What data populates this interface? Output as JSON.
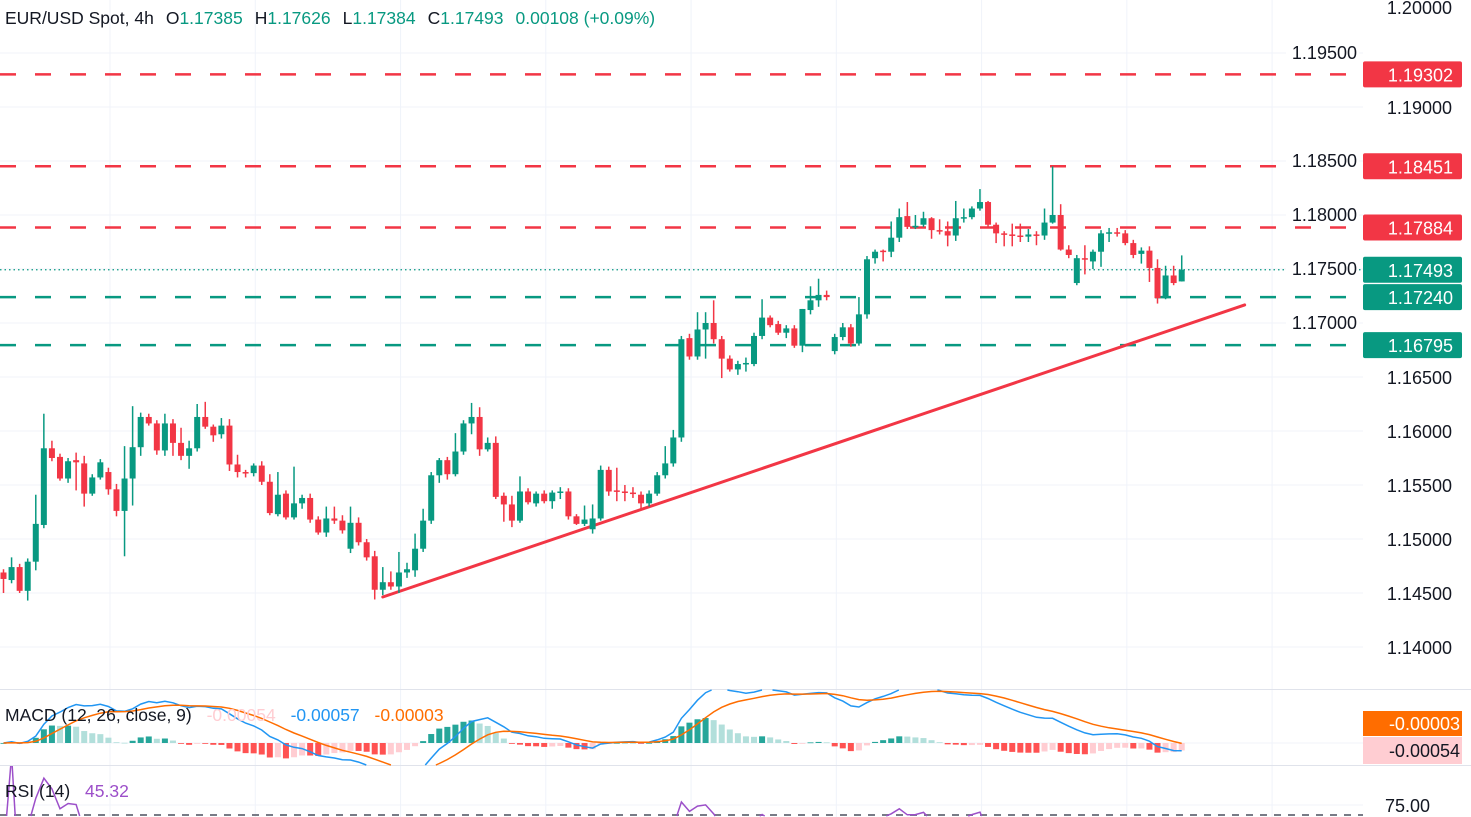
{
  "header": {
    "symbol": "EUR/USD Spot, 4h",
    "o_label": "O",
    "o": "1.17385",
    "h_label": "H",
    "h": "1.17626",
    "l_label": "L",
    "l": "1.17384",
    "c_label": "C",
    "c": "1.17493",
    "change": "0.00108 (+0.09%)"
  },
  "macd": {
    "title": "MACD (12, 26, close, 9)",
    "histogram": "-0.00054",
    "macd": "-0.00057",
    "signal": "-0.00003"
  },
  "rsi": {
    "title": "RSI (14)",
    "value": "45.32",
    "axis_label": "75.00"
  },
  "colors": {
    "up": "#089981",
    "down": "#f23645",
    "macd": "#2196f3",
    "signal": "#ff6d00",
    "rsi": "#9c4fc9",
    "grid": "#f0f3fa"
  },
  "chart_data": {
    "type": "candlestick",
    "title": "EUR/USD Spot, 4h",
    "ylim": [
      1.1362,
      1.2001
    ],
    "y_ticks": [
      "1.14000",
      "1.14500",
      "1.15000",
      "1.15500",
      "1.16000",
      "1.16500",
      "1.17000",
      "1.17500",
      "1.18000",
      "1.18500",
      "1.19000",
      "1.19500",
      "1.20000"
    ],
    "ohlc_fields": [
      "open",
      "high",
      "low",
      "close"
    ],
    "candles": [
      [
        1.1469,
        1.1472,
        1.145,
        1.1463
      ],
      [
        1.1462,
        1.1483,
        1.1459,
        1.1474
      ],
      [
        1.1474,
        1.1477,
        1.145,
        1.1452
      ],
      [
        1.1452,
        1.1482,
        1.1443,
        1.1479
      ],
      [
        1.1479,
        1.1541,
        1.1471,
        1.1514
      ],
      [
        1.1513,
        1.1616,
        1.151,
        1.1584
      ],
      [
        1.1584,
        1.1591,
        1.1572,
        1.1575
      ],
      [
        1.1576,
        1.1579,
        1.1554,
        1.1556
      ],
      [
        1.1556,
        1.1575,
        1.1552,
        1.1572
      ],
      [
        1.1573,
        1.158,
        1.1545,
        1.1571
      ],
      [
        1.157,
        1.1577,
        1.153,
        1.1542
      ],
      [
        1.1542,
        1.156,
        1.154,
        1.1557
      ],
      [
        1.1557,
        1.1574,
        1.1555,
        1.1571
      ],
      [
        1.1562,
        1.1566,
        1.1541,
        1.1546
      ],
      [
        1.1546,
        1.1551,
        1.1521,
        1.1526
      ],
      [
        1.1526,
        1.1586,
        1.1484,
        1.1556
      ],
      [
        1.1556,
        1.1623,
        1.1531,
        1.1585
      ],
      [
        1.1585,
        1.1617,
        1.1577,
        1.1613
      ],
      [
        1.1613,
        1.1616,
        1.1605,
        1.1607
      ],
      [
        1.1607,
        1.161,
        1.1578,
        1.1582
      ],
      [
        1.1582,
        1.1616,
        1.1577,
        1.1607
      ],
      [
        1.1607,
        1.1611,
        1.1577,
        1.1589
      ],
      [
        1.1589,
        1.1603,
        1.1573,
        1.1577
      ],
      [
        1.1577,
        1.1591,
        1.1565,
        1.1584
      ],
      [
        1.1584,
        1.1625,
        1.1581,
        1.1613
      ],
      [
        1.1613,
        1.1627,
        1.1602,
        1.1604
      ],
      [
        1.1604,
        1.1606,
        1.159,
        1.1596
      ],
      [
        1.1597,
        1.1612,
        1.1593,
        1.1605
      ],
      [
        1.1605,
        1.1611,
        1.1563,
        1.1569
      ],
      [
        1.1569,
        1.1578,
        1.1557,
        1.1562
      ],
      [
        1.1562,
        1.1564,
        1.1557,
        1.1561
      ],
      [
        1.1561,
        1.157,
        1.1558,
        1.1568
      ],
      [
        1.1568,
        1.1572,
        1.155,
        1.1553
      ],
      [
        1.1553,
        1.156,
        1.1522,
        1.1524
      ],
      [
        1.1523,
        1.1562,
        1.1521,
        1.1541
      ],
      [
        1.1542,
        1.1545,
        1.1518,
        1.152
      ],
      [
        1.152,
        1.1567,
        1.1518,
        1.1533
      ],
      [
        1.1533,
        1.1541,
        1.1528,
        1.1538
      ],
      [
        1.1538,
        1.1542,
        1.1515,
        1.1518
      ],
      [
        1.1518,
        1.1521,
        1.1504,
        1.1506
      ],
      [
        1.1506,
        1.153,
        1.1502,
        1.1519
      ],
      [
        1.1519,
        1.153,
        1.1514,
        1.1517
      ],
      [
        1.1517,
        1.1522,
        1.1505,
        1.1508
      ],
      [
        1.1491,
        1.153,
        1.1487,
        1.1515
      ],
      [
        1.1515,
        1.152,
        1.1494,
        1.1497
      ],
      [
        1.1497,
        1.15,
        1.148,
        1.1483
      ],
      [
        1.1484,
        1.1489,
        1.1444,
        1.1453
      ],
      [
        1.1453,
        1.1474,
        1.1448,
        1.146
      ],
      [
        1.146,
        1.147,
        1.1453,
        1.1456
      ],
      [
        1.1456,
        1.1488,
        1.145,
        1.1469
      ],
      [
        1.1469,
        1.1478,
        1.1464,
        1.1472
      ],
      [
        1.1471,
        1.1505,
        1.1465,
        1.1491
      ],
      [
        1.1491,
        1.1528,
        1.1488,
        1.1517
      ],
      [
        1.1517,
        1.1562,
        1.1514,
        1.1559
      ],
      [
        1.1559,
        1.1575,
        1.1552,
        1.1573
      ],
      [
        1.1573,
        1.1576,
        1.1555,
        1.156
      ],
      [
        1.156,
        1.1598,
        1.1558,
        1.1581
      ],
      [
        1.1581,
        1.161,
        1.1578,
        1.1607
      ],
      [
        1.1607,
        1.1626,
        1.1597,
        1.1613
      ],
      [
        1.1613,
        1.1622,
        1.1577,
        1.1583
      ],
      [
        1.1583,
        1.1594,
        1.1581,
        1.1589
      ],
      [
        1.1589,
        1.1595,
        1.1537,
        1.1539
      ],
      [
        1.154,
        1.1543,
        1.1516,
        1.1532
      ],
      [
        1.1532,
        1.154,
        1.1511,
        1.1517
      ],
      [
        1.1517,
        1.1558,
        1.1515,
        1.1544
      ],
      [
        1.1544,
        1.1547,
        1.1532,
        1.1534
      ],
      [
        1.1533,
        1.1544,
        1.153,
        1.1542
      ],
      [
        1.1542,
        1.1545,
        1.1533,
        1.1535
      ],
      [
        1.1535,
        1.1545,
        1.1528,
        1.1543
      ],
      [
        1.1543,
        1.1548,
        1.1537,
        1.1544
      ],
      [
        1.1544,
        1.1547,
        1.1518,
        1.1521
      ],
      [
        1.1521,
        1.1523,
        1.1513,
        1.1514
      ],
      [
        1.1514,
        1.1531,
        1.1512,
        1.1518
      ],
      [
        1.1509,
        1.1532,
        1.1505,
        1.1519
      ],
      [
        1.1519,
        1.1568,
        1.1517,
        1.1564
      ],
      [
        1.1564,
        1.1567,
        1.154,
        1.1544
      ],
      [
        1.1545,
        1.1566,
        1.1535,
        1.1544
      ],
      [
        1.1544,
        1.155,
        1.1535,
        1.1543
      ],
      [
        1.1543,
        1.1548,
        1.1538,
        1.1542
      ],
      [
        1.1541,
        1.1544,
        1.1527,
        1.1533
      ],
      [
        1.1533,
        1.1545,
        1.153,
        1.1542
      ],
      [
        1.1542,
        1.1562,
        1.154,
        1.1559
      ],
      [
        1.1559,
        1.1586,
        1.1556,
        1.157
      ],
      [
        1.157,
        1.1601,
        1.1567,
        1.1594
      ],
      [
        1.1594,
        1.1688,
        1.159,
        1.1685
      ],
      [
        1.1686,
        1.169,
        1.1666,
        1.1669
      ],
      [
        1.1669,
        1.171,
        1.1666,
        1.1694
      ],
      [
        1.1694,
        1.171,
        1.1667,
        1.17
      ],
      [
        1.17,
        1.1721,
        1.1681,
        1.1685
      ],
      [
        1.1685,
        1.1688,
        1.1649,
        1.1667
      ],
      [
        1.1667,
        1.167,
        1.1655,
        1.1657
      ],
      [
        1.1657,
        1.1665,
        1.1652,
        1.1662
      ],
      [
        1.1662,
        1.1668,
        1.1655,
        1.1663
      ],
      [
        1.1662,
        1.1691,
        1.166,
        1.1688
      ],
      [
        1.1688,
        1.1722,
        1.1685,
        1.1705
      ],
      [
        1.1705,
        1.1707,
        1.1696,
        1.1698
      ],
      [
        1.1699,
        1.1702,
        1.1689,
        1.1691
      ],
      [
        1.1691,
        1.1698,
        1.1686,
        1.1695
      ],
      [
        1.1695,
        1.1698,
        1.1677,
        1.1679
      ],
      [
        1.1679,
        1.1713,
        1.1673,
        1.1713
      ],
      [
        1.1712,
        1.1734,
        1.1708,
        1.1721
      ],
      [
        1.1721,
        1.1741,
        1.1715,
        1.1726
      ],
      [
        1.1726,
        1.173,
        1.1721,
        1.1724
      ],
      [
        1.1674,
        1.169,
        1.1671,
        1.1687
      ],
      [
        1.1687,
        1.17,
        1.1684,
        1.1696
      ],
      [
        1.1696,
        1.1699,
        1.1678,
        1.1681
      ],
      [
        1.1681,
        1.1724,
        1.1679,
        1.1708
      ],
      [
        1.1708,
        1.1762,
        1.1704,
        1.1759
      ],
      [
        1.176,
        1.1768,
        1.1755,
        1.1766
      ],
      [
        1.1767,
        1.1768,
        1.1757,
        1.1766
      ],
      [
        1.1766,
        1.1794,
        1.1761,
        1.1779
      ],
      [
        1.1779,
        1.1806,
        1.1775,
        1.1798
      ],
      [
        1.1799,
        1.1812,
        1.1787,
        1.1789
      ],
      [
        1.1789,
        1.18,
        1.1787,
        1.179
      ],
      [
        1.1791,
        1.1803,
        1.1789,
        1.1797
      ],
      [
        1.1797,
        1.1798,
        1.1778,
        1.1786
      ],
      [
        1.1786,
        1.1796,
        1.1782,
        1.1785
      ],
      [
        1.1785,
        1.1794,
        1.1771,
        1.1781
      ],
      [
        1.1781,
        1.1813,
        1.1776,
        1.1797
      ],
      [
        1.1797,
        1.1806,
        1.1793,
        1.1798
      ],
      [
        1.1798,
        1.1808,
        1.1796,
        1.1806
      ],
      [
        1.1806,
        1.1824,
        1.1804,
        1.1812
      ],
      [
        1.1812,
        1.1813,
        1.1788,
        1.1791
      ],
      [
        1.1791,
        1.1793,
        1.1774,
        1.1783
      ],
      [
        1.1783,
        1.1785,
        1.1771,
        1.1782
      ],
      [
        1.1782,
        1.1792,
        1.1771,
        1.1781
      ],
      [
        1.1781,
        1.1792,
        1.1775,
        1.178
      ],
      [
        1.178,
        1.1787,
        1.1775,
        1.1782
      ],
      [
        1.1782,
        1.1785,
        1.1772,
        1.1781
      ],
      [
        1.1781,
        1.1806,
        1.1777,
        1.1793
      ],
      [
        1.1793,
        1.1845,
        1.1792,
        1.18
      ],
      [
        1.18,
        1.181,
        1.1767,
        1.1768
      ],
      [
        1.1768,
        1.1772,
        1.176,
        1.1763
      ],
      [
        1.1737,
        1.1763,
        1.1735,
        1.176
      ],
      [
        1.176,
        1.1772,
        1.1745,
        1.1759
      ],
      [
        1.1757,
        1.1768,
        1.175,
        1.1766
      ],
      [
        1.1766,
        1.1786,
        1.1752,
        1.1783
      ],
      [
        1.1783,
        1.1788,
        1.1775,
        1.1784
      ],
      [
        1.1784,
        1.1788,
        1.178,
        1.1783
      ],
      [
        1.1783,
        1.1786,
        1.1772,
        1.1774
      ],
      [
        1.1774,
        1.1777,
        1.176,
        1.1763
      ],
      [
        1.1764,
        1.177,
        1.1755,
        1.1767
      ],
      [
        1.1767,
        1.1771,
        1.1738,
        1.1751
      ],
      [
        1.1751,
        1.1759,
        1.1718,
        1.1723
      ],
      [
        1.1723,
        1.1753,
        1.1722,
        1.1744
      ],
      [
        1.1744,
        1.1753,
        1.1735,
        1.1737
      ],
      [
        1.17385,
        1.17626,
        1.17384,
        1.17493
      ]
    ],
    "price_levels": [
      {
        "price": 1.19302,
        "label": "1.19302",
        "kind": "resistance",
        "style": "dashed"
      },
      {
        "price": 1.18451,
        "label": "1.18451",
        "kind": "resistance",
        "style": "dashed"
      },
      {
        "price": 1.17884,
        "label": "1.17884",
        "kind": "resistance",
        "style": "dashed"
      },
      {
        "price": 1.17493,
        "label": "1.17493",
        "kind": "last-price",
        "style": "dotted"
      },
      {
        "price": 1.1724,
        "label": "1.17240",
        "kind": "support",
        "style": "dashed"
      },
      {
        "price": 1.16795,
        "label": "1.16795",
        "kind": "support",
        "style": "dashed"
      }
    ],
    "trendline": {
      "from": {
        "bar": 47,
        "price": 1.14463
      },
      "to": {
        "bar": 153.8,
        "price": 1.17167
      },
      "color": "#f23645"
    },
    "indicators": {
      "macd": {
        "fast": 12,
        "slow": 26,
        "source": "close",
        "signal": 9,
        "last_histogram": -0.00054,
        "last_macd": -0.00057,
        "last_signal": -3e-05
      },
      "rsi": {
        "length": 14,
        "last": 45.32
      }
    }
  }
}
